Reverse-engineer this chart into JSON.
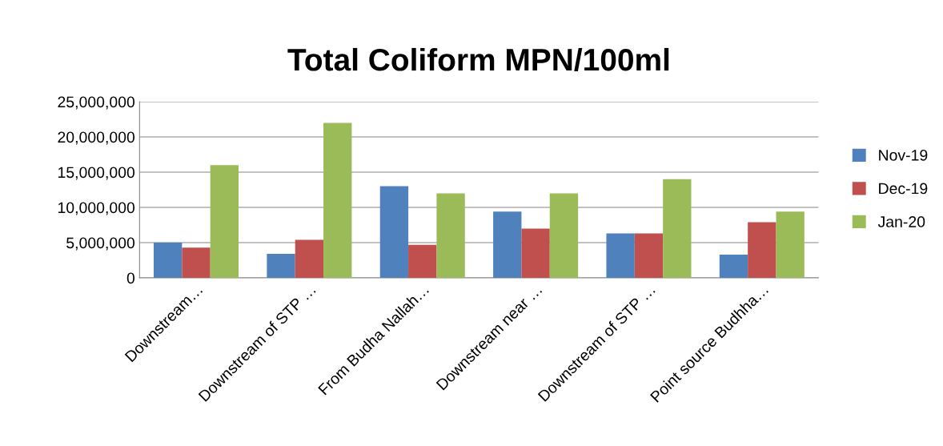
{
  "chart_data": {
    "type": "bar",
    "title": "Total Coliform MPN/100ml",
    "categories": [
      "Downstream…",
      "Downstream of STP …",
      "From Budha Nallah…",
      "Downstream near …",
      "Downstream of STP …",
      "Point source Budhha…"
    ],
    "series": [
      {
        "name": "Nov-19",
        "color": "#4f81bd",
        "values": [
          5000000,
          3400000,
          13000000,
          9400000,
          6300000,
          3300000
        ]
      },
      {
        "name": "Dec-19",
        "color": "#c0504d",
        "values": [
          4300000,
          5400000,
          4700000,
          7000000,
          6300000,
          7900000
        ]
      },
      {
        "name": "Jan-20",
        "color": "#9bbb59",
        "values": [
          16000000,
          22000000,
          12000000,
          12000000,
          14000000,
          9400000
        ]
      }
    ],
    "ylim": [
      0,
      25000000
    ],
    "yticks": [
      0,
      {
        "value": 5000000,
        "label": "5,000,000"
      },
      {
        "value": 10000000,
        "label": "10,000,000"
      },
      {
        "value": 15000000,
        "label": "15,000,000"
      },
      {
        "value": 20000000,
        "label": "20,000,000"
      },
      {
        "value": 25000000,
        "label": "25,000,000"
      }
    ],
    "grid": "y",
    "legend": "right"
  }
}
